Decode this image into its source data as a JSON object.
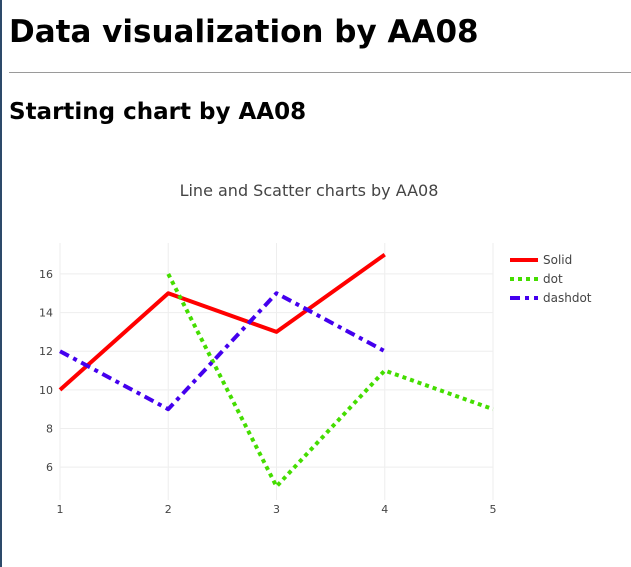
{
  "page": {
    "title": "Data visualization by AA08",
    "section_title": "Starting chart by AA08"
  },
  "chart_data": {
    "type": "line",
    "title": "Line and Scatter charts by AA08",
    "xlabel": "",
    "ylabel": "",
    "x_ticks": [
      1,
      2,
      3,
      4,
      5
    ],
    "y_ticks": [
      6,
      8,
      10,
      12,
      14,
      16
    ],
    "xlim": [
      1,
      5
    ],
    "ylim": [
      4.3,
      17.6
    ],
    "grid": true,
    "legend_position": "top-right",
    "series": [
      {
        "name": "Solid",
        "dash": "solid",
        "color": "#ff0000",
        "x": [
          1,
          2,
          3,
          4
        ],
        "y": [
          10,
          15,
          13,
          17
        ]
      },
      {
        "name": "dot",
        "dash": "dot",
        "color": "#44dd00",
        "x": [
          2,
          3,
          4,
          5
        ],
        "y": [
          16,
          5,
          11,
          9
        ]
      },
      {
        "name": "dashdot",
        "dash": "dashdot",
        "color": "#4400ee",
        "x": [
          1,
          2,
          3,
          4
        ],
        "y": [
          12,
          9,
          15,
          12
        ]
      }
    ]
  }
}
